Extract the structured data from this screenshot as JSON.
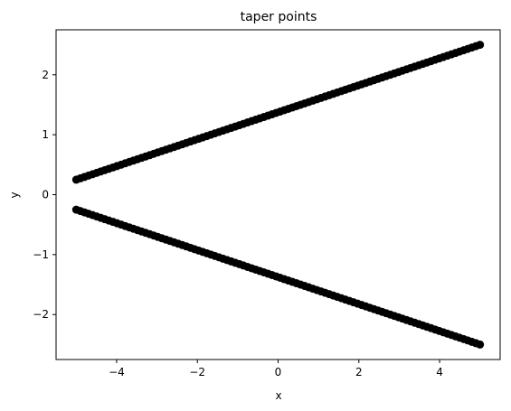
{
  "chart_data": {
    "type": "scatter",
    "title": "taper points",
    "xlabel": "x",
    "ylabel": "y",
    "xlim": [
      -5.5,
      5.5
    ],
    "ylim": [
      -2.75,
      2.75
    ],
    "xticks": [
      -4,
      -2,
      0,
      2,
      4
    ],
    "yticks": [
      -2,
      -1,
      0,
      1,
      2
    ],
    "xtick_labels": [
      "−4",
      "−2",
      "0",
      "2",
      "4"
    ],
    "ytick_labels": [
      "−2",
      "−1",
      "0",
      "1",
      "2"
    ],
    "grid": false,
    "marker_color": "#000000",
    "series": [
      {
        "x_range": [
          -5,
          5
        ],
        "y_range": [
          0.25,
          2.5
        ],
        "num_points": 100
      },
      {
        "x_range": [
          -5,
          5
        ],
        "y_range": [
          -0.25,
          -2.5
        ],
        "num_points": 100
      }
    ]
  }
}
